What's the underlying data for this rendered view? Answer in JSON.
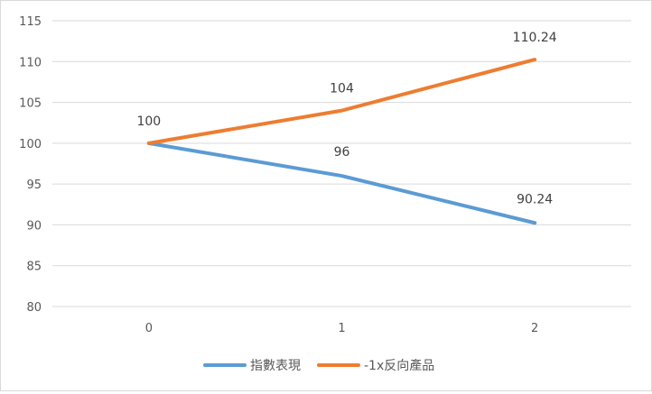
{
  "chart_data": {
    "type": "line",
    "title": "",
    "xlabel": "",
    "ylabel": "",
    "categories": [
      "0",
      "1",
      "2"
    ],
    "ylim": [
      80,
      115
    ],
    "yticks": [
      80,
      85,
      90,
      95,
      100,
      105,
      110,
      115
    ],
    "grid": true,
    "legend_position": "bottom",
    "series": [
      {
        "name": "指數表現",
        "color": "#5b9bd5",
        "values": [
          100,
          96,
          90.24
        ],
        "labels": [
          "100",
          "96",
          "90.24"
        ],
        "label_side": "below"
      },
      {
        "name": "-1x反向產品",
        "color": "#ed7d31",
        "values": [
          100,
          104,
          110.24
        ],
        "labels": [
          "100",
          "104",
          "110.24"
        ],
        "label_side": "above"
      }
    ]
  }
}
